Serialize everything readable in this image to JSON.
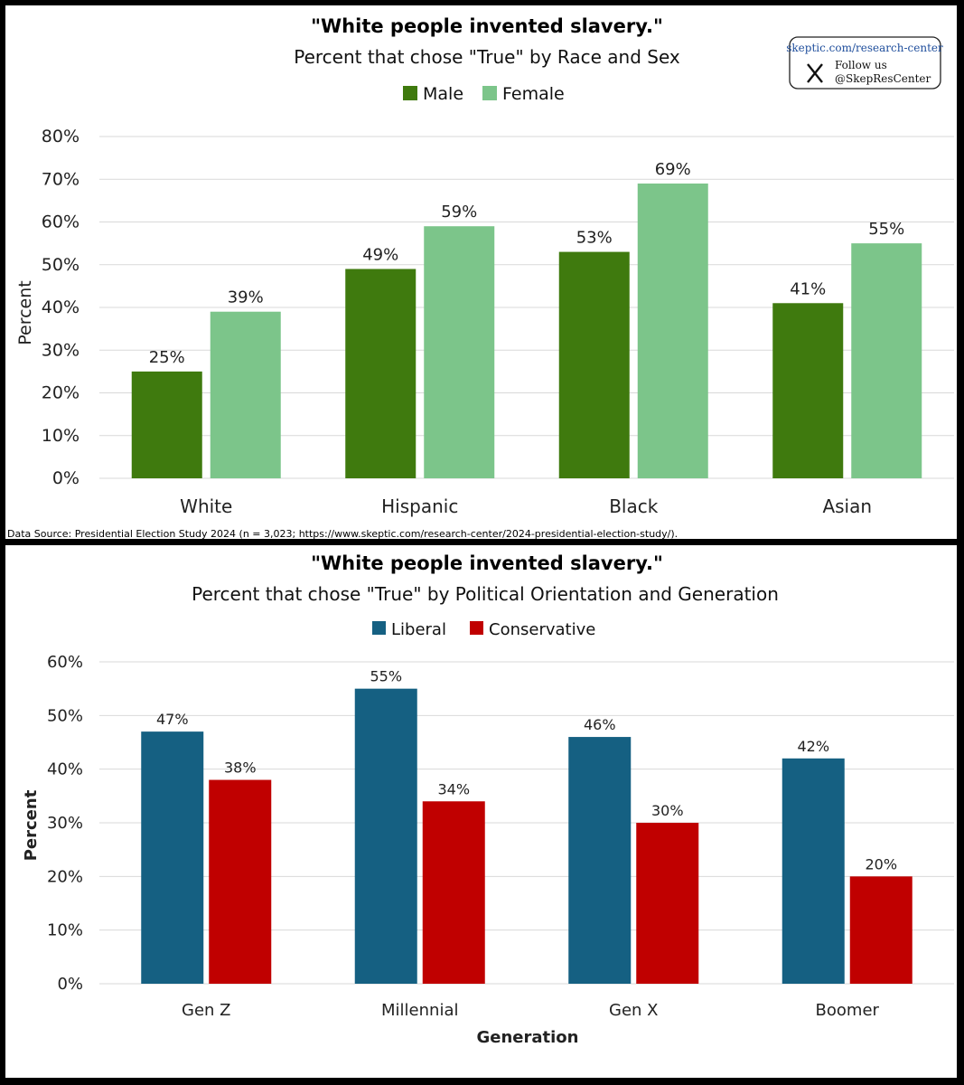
{
  "colors": {
    "male": "#3f7a0e",
    "female": "#7cc58a",
    "liberal": "#156082",
    "conservative": "#c00000"
  },
  "badge": {
    "url": "skeptic.com/research-center",
    "follow": "Follow us",
    "handle": "@SkepResCenter",
    "icon": "x-logo-icon"
  },
  "chart_data": [
    {
      "type": "bar",
      "title": "\"White people invented slavery.\"",
      "subtitle": "Percent that chose \"True\" by Race and Sex",
      "categories": [
        "White",
        "Hispanic",
        "Black",
        "Asian"
      ],
      "series": [
        {
          "name": "Male",
          "values": [
            25,
            49,
            53,
            41
          ],
          "labels": [
            "25%",
            "49%",
            "53%",
            "41%"
          ]
        },
        {
          "name": "Female",
          "values": [
            39,
            59,
            69,
            55
          ],
          "labels": [
            "39%",
            "59%",
            "69%",
            "55%"
          ]
        }
      ],
      "ylabel": "Percent",
      "xlabel": "",
      "ylim": [
        0,
        80
      ],
      "yticks": [
        "0%",
        "10%",
        "20%",
        "30%",
        "40%",
        "50%",
        "60%",
        "70%",
        "80%"
      ],
      "legend_position": "top-center",
      "grid": true,
      "source": "Data Source: Presidential Election Study 2024 (n = 3,023; https://www.skeptic.com/research-center/2024-presidential-election-study/)."
    },
    {
      "type": "bar",
      "title": "\"White people invented slavery.\"",
      "subtitle": "Percent that chose \"True\" by Political Orientation and Generation",
      "categories": [
        "Gen Z",
        "Millennial",
        "Gen X",
        "Boomer"
      ],
      "series": [
        {
          "name": "Liberal",
          "values": [
            47,
            55,
            46,
            42
          ],
          "labels": [
            "47%",
            "55%",
            "46%",
            "42%"
          ]
        },
        {
          "name": "Conservative",
          "values": [
            38,
            34,
            30,
            20
          ],
          "labels": [
            "38%",
            "34%",
            "30%",
            "20%"
          ]
        }
      ],
      "ylabel": "Percent",
      "xlabel": "Generation",
      "ylim": [
        0,
        60
      ],
      "yticks": [
        "0%",
        "10%",
        "20%",
        "30%",
        "40%",
        "50%",
        "60%"
      ],
      "legend_position": "top-center",
      "grid": true
    }
  ]
}
